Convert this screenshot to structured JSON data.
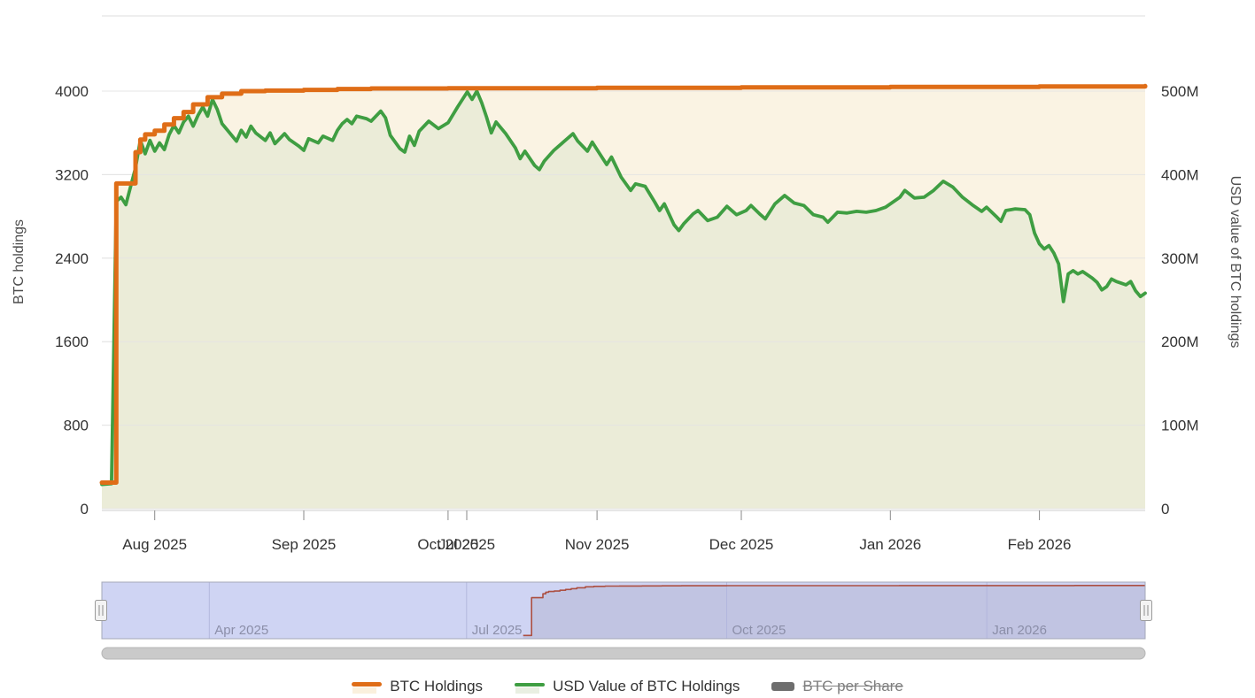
{
  "chart_data": {
    "type": "line",
    "title": "",
    "x_axis": {
      "unit": "days_from_left_edge",
      "range_days": [
        0,
        217
      ],
      "ticks": [
        {
          "label": "Aug 2025",
          "day": 11
        },
        {
          "label": "Sep 2025",
          "day": 42
        },
        {
          "label": "Oct 2025",
          "day": 72
        },
        {
          "label": "Nov 2025",
          "day": 103
        },
        {
          "label": "Dec 2025",
          "day": 133
        },
        {
          "label": "Jan 2026",
          "day": 164
        },
        {
          "label": "Feb 2026",
          "day": 195
        }
      ],
      "overlap_tick": {
        "label": "Jul 2025",
        "day": 75.9
      }
    },
    "y_axis_left": {
      "title": "BTC holdings",
      "plot_max": 4720,
      "ticks": [
        {
          "label": "0",
          "value": 0
        },
        {
          "label": "800",
          "value": 800
        },
        {
          "label": "1600",
          "value": 1600
        },
        {
          "label": "2400",
          "value": 2400
        },
        {
          "label": "3200",
          "value": 3200
        },
        {
          "label": "4000",
          "value": 4000
        }
      ]
    },
    "y_axis_right": {
      "title": "USD value of BTC holdings",
      "plot_max_musd": 590,
      "ticks": [
        {
          "label": "0",
          "value": 0
        },
        {
          "label": "100M",
          "value": 100
        },
        {
          "label": "200M",
          "value": 200
        },
        {
          "label": "300M",
          "value": 300
        },
        {
          "label": "400M",
          "value": 400
        },
        {
          "label": "500M",
          "value": 500
        }
      ]
    },
    "series": [
      {
        "name": "BTC Holdings",
        "axis": "left",
        "step": true,
        "color": "#df6d17",
        "fill": "#faf3e3",
        "points": [
          [
            0,
            250
          ],
          [
            3,
            3115
          ],
          [
            7,
            3415
          ],
          [
            8,
            3535
          ],
          [
            9,
            3585
          ],
          [
            11,
            3620
          ],
          [
            13,
            3680
          ],
          [
            15,
            3740
          ],
          [
            17,
            3800
          ],
          [
            19,
            3873
          ],
          [
            22,
            3941
          ],
          [
            25,
            3975
          ],
          [
            29,
            4000
          ],
          [
            34,
            4005
          ],
          [
            42,
            4012
          ],
          [
            49,
            4020
          ],
          [
            56,
            4025
          ],
          [
            72,
            4028
          ],
          [
            103,
            4032
          ],
          [
            133,
            4036
          ],
          [
            164,
            4040
          ],
          [
            195,
            4045
          ],
          [
            217,
            4048
          ]
        ]
      },
      {
        "name": "USD Value of BTC Holdings",
        "axis": "right",
        "step": false,
        "color": "#3f9e42",
        "fill": "#ebecd8",
        "points": [
          [
            0,
            29
          ],
          [
            2,
            30
          ],
          [
            3,
            368
          ],
          [
            4,
            373
          ],
          [
            5,
            364
          ],
          [
            7,
            408
          ],
          [
            8,
            441
          ],
          [
            9,
            425
          ],
          [
            10,
            441
          ],
          [
            11,
            428
          ],
          [
            12,
            438
          ],
          [
            13,
            430
          ],
          [
            14,
            448
          ],
          [
            15,
            459
          ],
          [
            16,
            450
          ],
          [
            17,
            463
          ],
          [
            18,
            470
          ],
          [
            19,
            458
          ],
          [
            20,
            471
          ],
          [
            21,
            481
          ],
          [
            22,
            470
          ],
          [
            23,
            490
          ],
          [
            24,
            478
          ],
          [
            25,
            461
          ],
          [
            27,
            447
          ],
          [
            28,
            440
          ],
          [
            29,
            453
          ],
          [
            30,
            445
          ],
          [
            31,
            458
          ],
          [
            32,
            450
          ],
          [
            34,
            441
          ],
          [
            35,
            450
          ],
          [
            36,
            437
          ],
          [
            38,
            449
          ],
          [
            39,
            442
          ],
          [
            41,
            434
          ],
          [
            42,
            429
          ],
          [
            43,
            443
          ],
          [
            45,
            438
          ],
          [
            46,
            446
          ],
          [
            48,
            441
          ],
          [
            49,
            453
          ],
          [
            50,
            461
          ],
          [
            51,
            466
          ],
          [
            52,
            461
          ],
          [
            53,
            470
          ],
          [
            55,
            467
          ],
          [
            56,
            464
          ],
          [
            58,
            476
          ],
          [
            59,
            468
          ],
          [
            60,
            447
          ],
          [
            62,
            431
          ],
          [
            63,
            427
          ],
          [
            64,
            446
          ],
          [
            65,
            435
          ],
          [
            66,
            452
          ],
          [
            68,
            464
          ],
          [
            70,
            455
          ],
          [
            72,
            462
          ],
          [
            74,
            481
          ],
          [
            76,
            499
          ],
          [
            77,
            490
          ],
          [
            78,
            500
          ],
          [
            79,
            486
          ],
          [
            80,
            469
          ],
          [
            81,
            450
          ],
          [
            82,
            463
          ],
          [
            84,
            449
          ],
          [
            86,
            432
          ],
          [
            87,
            419
          ],
          [
            88,
            428
          ],
          [
            90,
            411
          ],
          [
            91,
            406
          ],
          [
            92,
            416
          ],
          [
            94,
            429
          ],
          [
            96,
            439
          ],
          [
            98,
            449
          ],
          [
            99,
            440
          ],
          [
            101,
            428
          ],
          [
            102,
            439
          ],
          [
            103,
            430
          ],
          [
            105,
            412
          ],
          [
            106,
            421
          ],
          [
            108,
            397
          ],
          [
            110,
            381
          ],
          [
            111,
            389
          ],
          [
            113,
            386
          ],
          [
            115,
            367
          ],
          [
            116,
            357
          ],
          [
            117,
            365
          ],
          [
            119,
            340
          ],
          [
            120,
            333
          ],
          [
            121,
            341
          ],
          [
            123,
            353
          ],
          [
            124,
            357
          ],
          [
            126,
            345
          ],
          [
            128,
            349
          ],
          [
            130,
            362
          ],
          [
            132,
            352
          ],
          [
            134,
            357
          ],
          [
            135,
            363
          ],
          [
            137,
            352
          ],
          [
            138,
            347
          ],
          [
            140,
            365
          ],
          [
            142,
            375
          ],
          [
            144,
            366
          ],
          [
            146,
            363
          ],
          [
            148,
            352
          ],
          [
            150,
            349
          ],
          [
            151,
            343
          ],
          [
            153,
            355
          ],
          [
            155,
            354
          ],
          [
            157,
            356
          ],
          [
            159,
            355
          ],
          [
            161,
            357
          ],
          [
            163,
            361
          ],
          [
            166,
            373
          ],
          [
            167,
            381
          ],
          [
            169,
            372
          ],
          [
            171,
            373
          ],
          [
            173,
            381
          ],
          [
            175,
            392
          ],
          [
            177,
            385
          ],
          [
            179,
            373
          ],
          [
            181,
            364
          ],
          [
            183,
            356
          ],
          [
            184,
            361
          ],
          [
            186,
            350
          ],
          [
            187,
            344
          ],
          [
            188,
            357
          ],
          [
            190,
            359
          ],
          [
            192,
            358
          ],
          [
            193,
            352
          ],
          [
            194,
            330
          ],
          [
            195,
            317
          ],
          [
            196,
            311
          ],
          [
            197,
            315
          ],
          [
            198,
            306
          ],
          [
            199,
            293
          ],
          [
            200,
            248
          ],
          [
            201,
            281
          ],
          [
            202,
            285
          ],
          [
            203,
            281
          ],
          [
            204,
            284
          ],
          [
            205,
            280
          ],
          [
            206,
            276
          ],
          [
            207,
            271
          ],
          [
            208,
            262
          ],
          [
            209,
            266
          ],
          [
            210,
            275
          ],
          [
            211,
            272
          ],
          [
            212,
            270
          ],
          [
            213,
            268
          ],
          [
            214,
            272
          ],
          [
            215,
            261
          ],
          [
            216,
            254
          ],
          [
            217,
            258
          ]
        ]
      },
      {
        "name": "BTC per Share",
        "axis": "hidden",
        "hidden": true,
        "color": "#6e6e6e"
      }
    ],
    "navigator": {
      "full_range_days": 369,
      "main_start_offset": 149,
      "value_max": 4300,
      "line_color": "#ac4f41",
      "mask_color": "#cfd4f3",
      "ticks": [
        {
          "label": "Apr 2025",
          "full_day": 38
        },
        {
          "label": "Jul 2025",
          "full_day": 129
        },
        {
          "label": "Oct 2025",
          "full_day": 221
        },
        {
          "label": "Jan 2026",
          "full_day": 313
        }
      ]
    },
    "grid_color": "#e4e4e4",
    "layout": {
      "legend_position": "bottom-center",
      "grid": "horizontal-only"
    }
  },
  "legend": {
    "items": [
      {
        "label": "BTC Holdings",
        "enabled": true
      },
      {
        "label": "USD Value of BTC Holdings",
        "enabled": true
      },
      {
        "label": "BTC per Share",
        "enabled": false
      }
    ]
  }
}
